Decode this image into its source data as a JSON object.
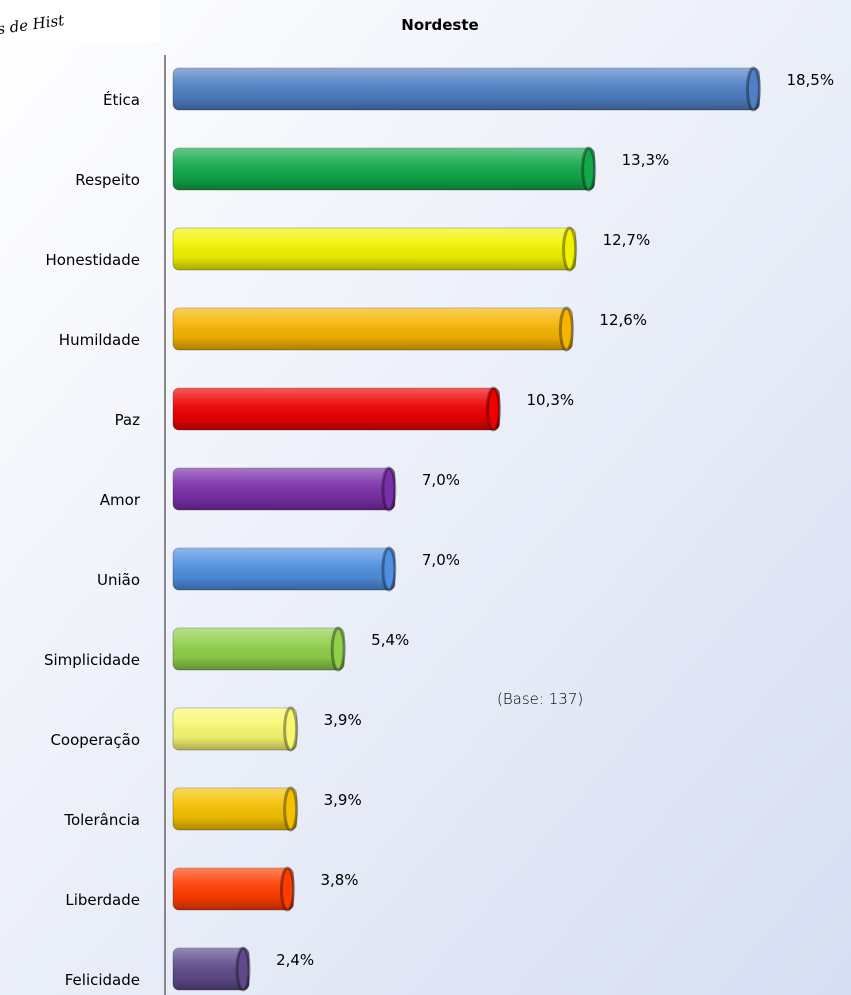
{
  "chart_data": {
    "type": "hbar",
    "title": "Nordeste",
    "logo_text": "s de Hist",
    "annotation": "(Base: 137)",
    "categories": [
      "Ética",
      "Respeito",
      "Honestidade",
      "Humildade",
      "Paz",
      "Amor",
      "União",
      "Simplicidade",
      "Cooperação",
      "Tolerância",
      "Liberdade",
      "Felicidade"
    ],
    "values": [
      18.5,
      13.3,
      12.7,
      12.6,
      10.3,
      7.0,
      7.0,
      5.4,
      3.9,
      3.9,
      3.8,
      2.4
    ],
    "value_labels": [
      "18,5%",
      "13,3%",
      "12,7%",
      "12,6%",
      "10,3%",
      "7,0%",
      "7,0%",
      "5,4%",
      "3,9%",
      "3,9%",
      "3,8%",
      "2,4%"
    ],
    "colors": [
      "#4f7fc4",
      "#12a84a",
      "#f2f200",
      "#f5b400",
      "#ee0000",
      "#7a2fa8",
      "#4f8fdf",
      "#8fcf4a",
      "#f8f870",
      "#f5c000",
      "#ff3c00",
      "#5e4a8a"
    ],
    "xlim": [
      0,
      20
    ]
  }
}
